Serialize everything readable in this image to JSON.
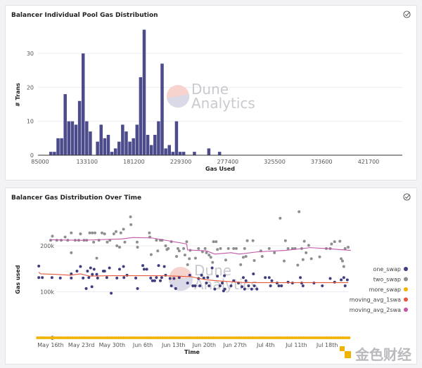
{
  "chart_data": [
    {
      "type": "bar",
      "title": "Balancer Individual Pool Gas Distribution",
      "xlabel": "Gas Used",
      "ylabel": "# Trans",
      "xlim": [
        85000,
        456000
      ],
      "ylim": [
        0,
        37.5
      ],
      "x_ticks": [
        "85000",
        "133100",
        "181200",
        "229300",
        "277400",
        "325500",
        "373600",
        "421700"
      ],
      "x_tick_values": [
        85000,
        133100,
        181200,
        229300,
        277400,
        325500,
        373600,
        421700
      ],
      "y_ticks": [
        0,
        10,
        20,
        30
      ],
      "grid": true,
      "bin_start": 94400,
      "bin_width": 3680,
      "values": [
        1,
        1,
        5,
        5,
        18,
        10,
        10,
        9,
        16,
        30,
        10,
        7,
        0,
        4,
        9,
        5,
        6,
        1,
        2,
        4,
        9,
        7,
        4,
        5,
        9,
        23,
        37,
        6,
        3,
        6,
        10,
        27,
        2,
        3,
        1,
        10,
        1,
        1,
        0,
        0,
        1,
        0,
        0,
        0,
        2,
        0,
        0,
        1
      ],
      "color": "#4c4c8c",
      "watermark": [
        "Dune",
        "Analytics"
      ]
    },
    {
      "type": "scatter",
      "title": "Balancer Gas Distribution Over Time",
      "xlabel": "Time",
      "ylabel": "Gas used",
      "x_unit": "days since May 16th",
      "xlim": [
        -5,
        70
      ],
      "ylim": [
        0,
        290000
      ],
      "x_ticks": [
        {
          "label": "May 16th",
          "day": 0
        },
        {
          "label": "May 23rd",
          "day": 7
        },
        {
          "label": "May 30th",
          "day": 14
        },
        {
          "label": "Jun 6th",
          "day": 21
        },
        {
          "label": "Jun 13th",
          "day": 28
        },
        {
          "label": "Jun 20th",
          "day": 35
        },
        {
          "label": "Jun 27th",
          "day": 42
        },
        {
          "label": "Jul 4th",
          "day": 49
        },
        {
          "label": "Jul 11th",
          "day": 56
        },
        {
          "label": "Jul 18th",
          "day": 63
        }
      ],
      "y_ticks": [
        {
          "label": "0",
          "value": 0
        },
        {
          "label": "100k",
          "value": 100000
        },
        {
          "label": "200k",
          "value": 200000
        }
      ],
      "legend_position": "right",
      "watermark": [
        "Dune",
        "Analytics"
      ],
      "series": [
        {
          "name": "one_swap",
          "kind": "points",
          "color": "#3d3d80",
          "points_k": [
            [
              -2.7,
              156
            ],
            [
              -2.7,
              131
            ],
            [
              -1.9,
              131
            ],
            [
              0.3,
              131
            ],
            [
              2.2,
              130
            ],
            [
              4.7,
              139
            ],
            [
              4.7,
              130
            ],
            [
              6.0,
              145
            ],
            [
              6.8,
              155
            ],
            [
              7.4,
              130
            ],
            [
              8.1,
              107
            ],
            [
              8.4,
              145
            ],
            [
              8.7,
              131
            ],
            [
              9.1,
              152
            ],
            [
              9.4,
              111
            ],
            [
              9.5,
              138
            ],
            [
              9.9,
              149
            ],
            [
              10.5,
              138
            ],
            [
              10.7,
              130
            ],
            [
              12.0,
              145
            ],
            [
              12.3,
              145
            ],
            [
              12.8,
              131
            ],
            [
              13.4,
              152
            ],
            [
              13.8,
              97
            ],
            [
              15.1,
              130
            ],
            [
              15.7,
              149
            ],
            [
              16.6,
              155
            ],
            [
              16.7,
              131
            ],
            [
              17.4,
              136
            ],
            [
              19.4,
              130
            ],
            [
              19.8,
              107
            ],
            [
              21.0,
              157
            ],
            [
              21.3,
              149
            ],
            [
              21.9,
              149
            ],
            [
              22.8,
              130
            ],
            [
              23.2,
              124
            ],
            [
              23.7,
              124
            ],
            [
              24.1,
              131
            ],
            [
              24.6,
              157
            ],
            [
              25.0,
              124
            ],
            [
              25.3,
              131
            ],
            [
              25.9,
              155
            ],
            [
              26.2,
              136
            ],
            [
              27.2,
              129
            ],
            [
              27.5,
              113
            ],
            [
              28.1,
              129
            ],
            [
              28.5,
              107
            ],
            [
              29.3,
              131
            ],
            [
              31.2,
              119
            ],
            [
              31.7,
              136
            ],
            [
              32.4,
              113
            ],
            [
              32.9,
              113
            ],
            [
              33.7,
              129
            ],
            [
              34.0,
              113
            ],
            [
              34.4,
              136
            ],
            [
              34.9,
              130
            ],
            [
              35.5,
              119
            ],
            [
              35.8,
              131
            ],
            [
              36.1,
              113
            ],
            [
              36.8,
              152
            ],
            [
              37.4,
              106
            ],
            [
              38.0,
              134
            ],
            [
              38.6,
              113
            ],
            [
              39.1,
              119
            ],
            [
              39.4,
              102
            ],
            [
              39.6,
              135
            ],
            [
              39.7,
              106
            ],
            [
              41.1,
              113
            ],
            [
              41.7,
              124
            ],
            [
              42.8,
              119
            ],
            [
              43.6,
              111
            ],
            [
              43.9,
              131
            ],
            [
              44.2,
              106
            ],
            [
              44.5,
              124
            ],
            [
              45.1,
              113
            ],
            [
              45.8,
              106
            ],
            [
              46.2,
              139
            ],
            [
              46.4,
              113
            ],
            [
              47.0,
              106
            ],
            [
              48.9,
              131
            ],
            [
              49.8,
              131
            ],
            [
              50.1,
              113
            ],
            [
              50.4,
              124
            ],
            [
              51.6,
              119
            ],
            [
              52.0,
              113
            ],
            [
              52.6,
              113
            ],
            [
              54.1,
              121
            ],
            [
              55.1,
              119
            ],
            [
              56.9,
              131
            ],
            [
              57.2,
              119
            ],
            [
              57.5,
              113
            ],
            [
              60.0,
              119
            ],
            [
              61.9,
              113
            ],
            [
              63.7,
              129
            ],
            [
              64.7,
              121
            ],
            [
              66.2,
              126
            ],
            [
              66.8,
              131
            ],
            [
              67.1,
              113
            ],
            [
              67.6,
              126
            ]
          ]
        },
        {
          "name": "two_swap",
          "kind": "points",
          "color": "#8e8e8e",
          "points_k": [
            [
              0.0,
              212
            ],
            [
              0.4,
              221
            ],
            [
              1.4,
              212
            ],
            [
              2.4,
              212
            ],
            [
              3.3,
              219
            ],
            [
              3.9,
              212
            ],
            [
              4.7,
              228
            ],
            [
              4.7,
              185
            ],
            [
              5.6,
              212
            ],
            [
              6.4,
              212
            ],
            [
              6.8,
              226
            ],
            [
              7.6,
              212
            ],
            [
              8.2,
              212
            ],
            [
              8.9,
              228
            ],
            [
              9.5,
              228
            ],
            [
              9.8,
              208
            ],
            [
              10.1,
              228
            ],
            [
              10.5,
              173
            ],
            [
              11.0,
              212
            ],
            [
              11.7,
              228
            ],
            [
              12.3,
              226
            ],
            [
              12.9,
              208
            ],
            [
              13.5,
              212
            ],
            [
              14.4,
              226
            ],
            [
              14.9,
              231
            ],
            [
              15.1,
              200
            ],
            [
              15.7,
              197
            ],
            [
              16.0,
              228
            ],
            [
              16.6,
              236
            ],
            [
              16.9,
              208
            ],
            [
              18.2,
              263
            ],
            [
              18.3,
              246
            ],
            [
              19.7,
              208
            ],
            [
              19.8,
              197
            ],
            [
              22.5,
              228
            ],
            [
              22.6,
              219
            ],
            [
              22.9,
              181
            ],
            [
              24.1,
              212
            ],
            [
              24.4,
              189
            ],
            [
              25.0,
              212
            ],
            [
              25.4,
              212
            ],
            [
              26.2,
              200
            ],
            [
              26.5,
              192
            ],
            [
              26.8,
              194
            ],
            [
              27.5,
              209
            ],
            [
              28.7,
              177
            ],
            [
              29.0,
              194
            ],
            [
              29.3,
              189
            ],
            [
              30.3,
              194
            ],
            [
              30.6,
              180
            ],
            [
              31.0,
              209
            ],
            [
              31.2,
              159
            ],
            [
              31.6,
              172
            ],
            [
              31.8,
              190
            ],
            [
              33.0,
              173
            ],
            [
              33.7,
              194
            ],
            [
              34.6,
              187
            ],
            [
              35.2,
              194
            ],
            [
              35.5,
              185
            ],
            [
              36.1,
              180
            ],
            [
              36.5,
              175
            ],
            [
              36.9,
              164
            ],
            [
              37.1,
              209
            ],
            [
              37.7,
              209
            ],
            [
              38.0,
              192
            ],
            [
              38.7,
              194
            ],
            [
              39.9,
              169
            ],
            [
              40.5,
              194
            ],
            [
              41.7,
              194
            ],
            [
              42.3,
              194
            ],
            [
              43.3,
              159
            ],
            [
              43.9,
              175
            ],
            [
              44.2,
              194
            ],
            [
              44.5,
              177
            ],
            [
              44.8,
              211
            ],
            [
              46.1,
              211
            ],
            [
              46.4,
              168
            ],
            [
              47.9,
              189
            ],
            [
              48.2,
              177
            ],
            [
              49.8,
              194
            ],
            [
              51.0,
              185
            ],
            [
              52.3,
              260
            ],
            [
              53.2,
              167
            ],
            [
              53.5,
              211
            ],
            [
              54.1,
              194
            ],
            [
              55.1,
              194
            ],
            [
              55.7,
              194
            ],
            [
              56.3,
              158
            ],
            [
              56.6,
              274
            ],
            [
              57.2,
              194
            ],
            [
              57.5,
              170
            ],
            [
              57.8,
              210
            ],
            [
              58.2,
              185
            ],
            [
              58.8,
              201
            ],
            [
              59.4,
              172
            ],
            [
              61.3,
              176
            ],
            [
              62.8,
              194
            ],
            [
              63.7,
              194
            ],
            [
              64.0,
              204
            ],
            [
              64.7,
              209
            ],
            [
              65.9,
              210
            ],
            [
              66.2,
              172
            ],
            [
              66.5,
              167
            ],
            [
              66.8,
              155
            ],
            [
              67.1,
              194
            ],
            [
              67.8,
              197
            ]
          ]
        },
        {
          "name": "more_swap",
          "kind": "points",
          "color": "#f0b400",
          "value_k": 0,
          "day_range": [
            -3,
            68
          ]
        },
        {
          "name": "moving_avg_1swap",
          "legend_label": "moving_avg_1swa",
          "kind": "line",
          "color": "#e5583b",
          "points_k": [
            [
              -2.7,
              143
            ],
            [
              -2.3,
              139
            ],
            [
              0.8,
              138
            ],
            [
              4.5,
              136
            ],
            [
              6.8,
              139
            ],
            [
              8.9,
              134
            ],
            [
              13.2,
              135
            ],
            [
              19.4,
              135
            ],
            [
              25.6,
              135
            ],
            [
              31.8,
              133
            ],
            [
              35.5,
              126
            ],
            [
              38.0,
              124
            ],
            [
              44.2,
              120
            ],
            [
              50.4,
              120
            ],
            [
              56.6,
              120
            ],
            [
              67.8,
              120
            ]
          ]
        },
        {
          "name": "moving_avg_2swap",
          "legend_label": "moving_avg_2swa",
          "kind": "line",
          "color": "#c255a8",
          "points_k": [
            [
              -0.2,
              213
            ],
            [
              7.0,
              212
            ],
            [
              16.3,
              215
            ],
            [
              18.8,
              218
            ],
            [
              23.1,
              217
            ],
            [
              25.6,
              213
            ],
            [
              31.0,
              204
            ],
            [
              31.2,
              191
            ],
            [
              35.5,
              189
            ],
            [
              37.4,
              182
            ],
            [
              41.1,
              185
            ],
            [
              43.0,
              182
            ],
            [
              47.3,
              187
            ],
            [
              53.5,
              190
            ],
            [
              59.1,
              196
            ],
            [
              62.8,
              194
            ],
            [
              68.4,
              190
            ]
          ]
        }
      ]
    }
  ],
  "corner_logo": "金色财经"
}
